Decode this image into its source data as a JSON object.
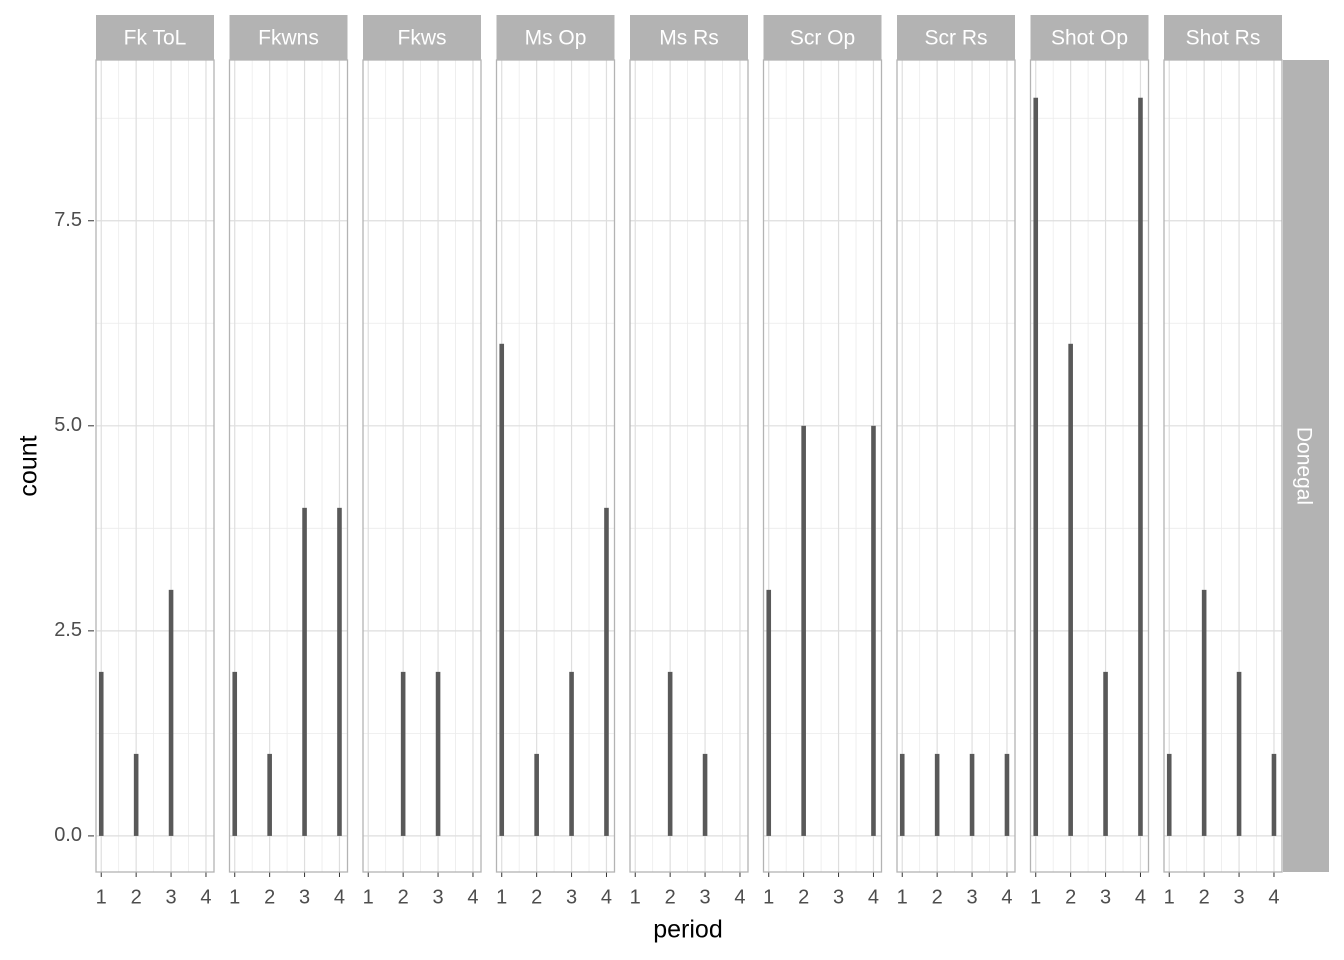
{
  "chart_data": {
    "type": "bar",
    "x_label": "period",
    "y_label": "count",
    "row_strip": "Donegal",
    "color": "#595959",
    "categories": [
      1,
      2,
      3,
      4
    ],
    "xlim": [
      0.85,
      4.23
    ],
    "xticks": [
      1,
      2,
      3,
      4
    ],
    "ylim": [
      -0.44,
      9.46
    ],
    "yticks": [
      {
        "value": 0,
        "label": "0.0"
      },
      {
        "value": 2.5,
        "label": "2.5"
      },
      {
        "value": 5,
        "label": "5.0"
      },
      {
        "value": 7.5,
        "label": "7.5"
      }
    ],
    "grid": true,
    "panels": [
      {
        "name": "Fk ToL",
        "values": [
          2,
          1,
          3,
          null
        ]
      },
      {
        "name": "Fkwns",
        "values": [
          2,
          1,
          4,
          4
        ]
      },
      {
        "name": "Fkws",
        "values": [
          null,
          2,
          2,
          null
        ]
      },
      {
        "name": "Ms Op",
        "values": [
          6,
          1,
          2,
          4
        ]
      },
      {
        "name": "Ms Rs",
        "values": [
          null,
          2,
          1,
          null
        ]
      },
      {
        "name": "Scr Op",
        "values": [
          3,
          5,
          null,
          5
        ]
      },
      {
        "name": "Scr Rs",
        "values": [
          1,
          1,
          1,
          1
        ]
      },
      {
        "name": "Shot Op",
        "values": [
          9,
          6,
          2,
          9
        ]
      },
      {
        "name": "Shot Rs",
        "values": [
          1,
          3,
          2,
          1
        ]
      }
    ]
  }
}
